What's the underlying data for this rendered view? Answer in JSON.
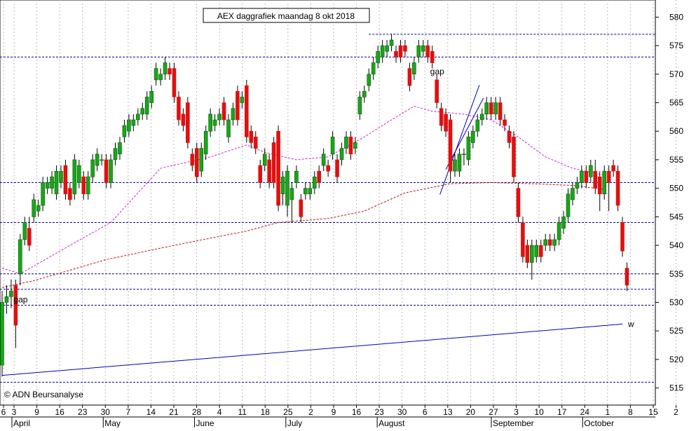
{
  "chart_data": {
    "type": "candlestick",
    "title": "AEX daggrafiek maandag 8 okt 2018",
    "source": "© ADN Beursanalyse",
    "ylim": [
      512,
      583
    ],
    "yticks": [
      515,
      520,
      525,
      530,
      535,
      540,
      545,
      550,
      555,
      560,
      565,
      570,
      575,
      580
    ],
    "xticks": [
      "6",
      "3",
      "9",
      "16",
      "23",
      "30",
      "7",
      "14",
      "21",
      "28",
      "4",
      "11",
      "18",
      "25",
      "2",
      "9",
      "16",
      "23",
      "30",
      "6",
      "13",
      "20",
      "27",
      "3",
      "10",
      "17",
      "24",
      "1",
      "8",
      "15",
      "2"
    ],
    "months": [
      "April",
      "May",
      "June",
      "July",
      "August",
      "September",
      "October"
    ],
    "colors": {
      "up": "#1aa51a",
      "down": "#e01010",
      "ma_short": "#d020d0",
      "ma_long": "#c01010",
      "trend": "#0000c0",
      "level": "#0000a0"
    },
    "candles": [
      [
        519,
        532,
        517,
        530
      ],
      [
        530,
        533,
        528,
        531
      ],
      [
        531,
        534,
        529,
        532
      ],
      [
        533,
        534,
        522,
        526
      ],
      [
        535,
        542,
        533,
        541
      ],
      [
        541,
        545,
        540,
        544
      ],
      [
        543,
        545,
        539,
        540
      ],
      [
        545,
        549,
        544,
        548
      ],
      [
        546,
        548,
        545,
        547
      ],
      [
        547,
        552,
        546,
        551
      ],
      [
        550,
        552,
        549,
        551
      ],
      [
        550,
        553,
        549,
        552
      ],
      [
        549,
        554,
        548,
        553
      ],
      [
        551,
        554,
        550,
        553
      ],
      [
        554,
        555,
        548,
        549
      ],
      [
        550,
        551,
        547,
        548
      ],
      [
        549,
        556,
        548,
        555
      ],
      [
        551,
        555,
        550,
        554
      ],
      [
        552,
        553,
        548,
        549
      ],
      [
        549,
        553,
        548,
        552
      ],
      [
        552,
        556,
        551,
        555
      ],
      [
        554,
        557,
        553,
        556
      ],
      [
        555,
        556,
        554,
        555
      ],
      [
        555,
        556,
        550,
        551
      ],
      [
        551,
        556,
        550,
        555
      ],
      [
        555,
        558,
        554,
        557
      ],
      [
        556,
        559,
        555,
        558
      ],
      [
        559,
        562,
        558,
        561
      ],
      [
        560,
        563,
        559,
        562
      ],
      [
        561,
        563,
        560,
        562
      ],
      [
        562,
        564,
        561,
        563
      ],
      [
        563,
        565,
        562,
        564
      ],
      [
        563,
        567,
        562,
        566
      ],
      [
        565,
        568,
        564,
        567
      ],
      [
        569,
        572,
        568,
        571
      ],
      [
        569,
        571,
        568,
        570
      ],
      [
        570,
        573,
        569,
        572
      ],
      [
        571,
        572,
        569,
        570
      ],
      [
        571,
        572,
        565,
        566
      ],
      [
        566,
        567,
        561,
        562
      ],
      [
        563,
        564,
        560,
        561
      ],
      [
        565,
        566,
        557,
        558
      ],
      [
        556,
        557,
        553,
        554
      ],
      [
        557,
        558,
        551,
        552
      ],
      [
        553,
        558,
        552,
        557
      ],
      [
        556,
        561,
        555,
        560
      ],
      [
        560,
        564,
        559,
        563
      ],
      [
        561,
        563,
        560,
        562
      ],
      [
        562,
        564,
        561,
        563
      ],
      [
        565,
        566,
        561,
        562
      ],
      [
        559,
        563,
        558,
        562
      ],
      [
        562,
        565,
        561,
        564
      ],
      [
        567,
        568,
        561,
        562
      ],
      [
        565,
        567,
        564,
        566
      ],
      [
        568,
        569,
        558,
        559
      ],
      [
        560,
        561,
        557,
        558
      ],
      [
        559,
        560,
        556,
        557
      ],
      [
        554,
        555,
        550,
        551
      ],
      [
        554,
        557,
        553,
        556
      ],
      [
        555,
        556,
        550,
        551
      ],
      [
        558,
        559,
        550,
        551
      ],
      [
        560,
        561,
        546,
        547
      ],
      [
        549,
        553,
        547,
        552
      ],
      [
        547,
        554,
        545,
        553
      ],
      [
        548,
        551,
        544,
        550
      ],
      [
        551,
        554,
        550,
        553
      ],
      [
        548,
        549,
        544,
        545
      ],
      [
        549,
        551,
        548,
        550
      ],
      [
        549,
        551,
        548,
        550
      ],
      [
        550,
        553,
        549,
        552
      ],
      [
        553,
        554,
        550,
        551
      ],
      [
        554,
        557,
        553,
        556
      ],
      [
        554,
        555,
        552,
        553
      ],
      [
        556,
        560,
        555,
        559
      ],
      [
        555,
        556,
        551,
        552
      ],
      [
        555,
        558,
        554,
        557
      ],
      [
        557,
        560,
        556,
        559
      ],
      [
        559,
        560,
        555,
        556
      ],
      [
        557,
        559,
        556,
        558
      ],
      [
        563,
        567,
        562,
        566
      ],
      [
        566,
        568,
        565,
        567
      ],
      [
        568,
        571,
        567,
        570
      ],
      [
        570,
        573,
        569,
        572
      ],
      [
        572,
        575,
        571,
        574
      ],
      [
        573,
        576,
        572,
        575
      ],
      [
        574,
        576,
        573,
        575
      ],
      [
        575,
        577,
        574,
        576
      ],
      [
        574,
        575,
        572,
        573
      ],
      [
        575,
        576,
        572,
        573
      ],
      [
        575,
        576,
        573,
        574
      ],
      [
        571,
        572,
        567,
        568
      ],
      [
        570,
        573,
        569,
        572
      ],
      [
        573,
        576,
        572,
        575
      ],
      [
        574,
        576,
        573,
        575
      ],
      [
        575,
        576,
        572,
        573
      ],
      [
        574,
        575,
        571,
        572
      ],
      [
        569,
        570,
        564,
        565
      ],
      [
        564,
        565,
        560,
        561
      ],
      [
        563,
        564,
        559,
        560
      ],
      [
        562,
        563,
        551,
        553
      ],
      [
        553,
        556,
        552,
        555
      ],
      [
        553,
        557,
        552,
        556
      ],
      [
        556,
        557,
        554,
        556
      ],
      [
        555,
        560,
        554,
        559
      ],
      [
        558,
        561,
        557,
        560
      ],
      [
        560,
        563,
        559,
        562
      ],
      [
        562,
        564,
        561,
        563
      ],
      [
        563,
        566,
        562,
        565
      ],
      [
        565,
        566,
        562,
        563
      ],
      [
        563,
        566,
        562,
        565
      ],
      [
        565,
        566,
        561,
        562
      ],
      [
        562,
        563,
        560,
        561
      ],
      [
        560,
        561,
        557,
        558
      ],
      [
        559,
        560,
        551,
        552
      ],
      [
        550,
        551,
        544,
        545
      ],
      [
        544,
        545,
        537,
        538
      ],
      [
        540,
        541,
        536,
        537
      ],
      [
        537,
        541,
        534,
        540
      ],
      [
        538,
        541,
        537,
        540
      ],
      [
        540,
        541,
        537,
        538
      ],
      [
        540,
        542,
        539,
        541
      ],
      [
        541,
        542,
        539,
        540
      ],
      [
        540,
        542,
        539,
        541
      ],
      [
        541,
        545,
        540,
        544
      ],
      [
        543,
        546,
        542,
        545
      ],
      [
        545,
        550,
        544,
        549
      ],
      [
        548,
        551,
        547,
        550
      ],
      [
        550,
        552,
        549,
        551
      ],
      [
        551,
        554,
        550,
        553
      ],
      [
        553,
        554,
        550,
        551
      ],
      [
        552,
        555,
        551,
        554
      ],
      [
        553,
        555,
        549,
        550
      ],
      [
        552,
        553,
        546,
        549
      ],
      [
        549,
        554,
        548,
        553
      ],
      [
        553,
        554,
        546,
        551
      ],
      [
        554,
        555,
        552,
        553
      ],
      [
        553,
        554,
        546,
        547
      ],
      [
        544,
        545,
        538,
        539
      ],
      [
        536,
        537,
        532,
        533
      ]
    ],
    "moving_averages": [
      {
        "x": [
          0,
          4,
          15,
          24,
          35,
          46,
          54,
          58,
          65,
          72,
          80,
          86,
          91,
          95,
          102,
          108,
          114,
          120,
          126,
          133
        ],
        "values": [
          536,
          535,
          540,
          544,
          553.5,
          555.5,
          557.6,
          556.3,
          555,
          555.5,
          559,
          562,
          564.4,
          563.5,
          563,
          562,
          559,
          555.5,
          553.5,
          552.3
        ]
      },
      {
        "x": [
          0,
          7,
          23,
          38,
          54,
          61,
          72,
          80,
          89,
          99,
          108,
          117,
          126,
          133
        ],
        "values": [
          532.6,
          533.8,
          537.5,
          540,
          542.5,
          544,
          544.7,
          546,
          549.2,
          550.8,
          551,
          550.8,
          550.5,
          549.8
        ]
      }
    ],
    "trendlines": [
      {
        "x": [
          0,
          137
        ],
        "values": [
          517.2,
          526.2
        ]
      },
      {
        "x": [
          96.7,
          105.4
        ],
        "values": [
          548.9,
          568.1
        ]
      },
      {
        "x": [
          98,
          106.3
        ],
        "values": [
          553.3,
          565.8
        ]
      }
    ],
    "trend_label": "w",
    "levels": [
      577,
      573,
      551,
      544,
      535,
      532.3,
      529.5,
      516
    ],
    "level_577_start": 81,
    "annotations": [
      {
        "text": "gap",
        "x": 1,
        "value": 530.5
      },
      {
        "text": "gap",
        "x": 93,
        "value": 570.5
      }
    ]
  }
}
